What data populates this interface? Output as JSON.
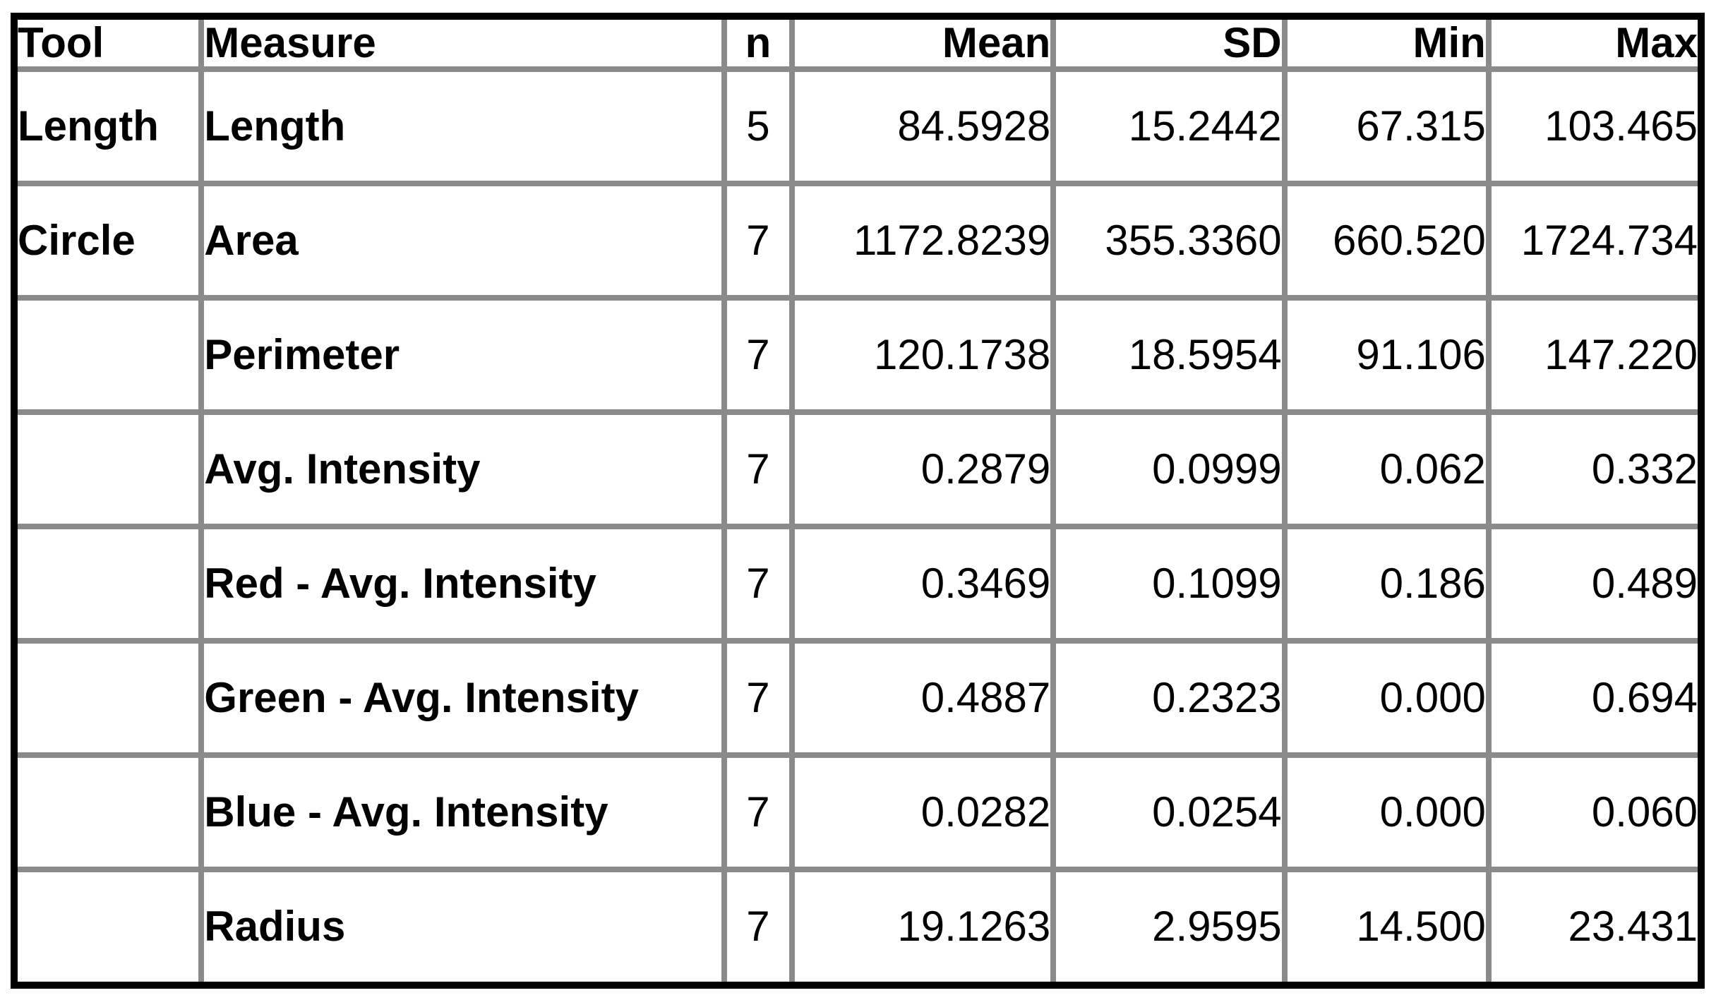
{
  "table": {
    "columns": [
      "Tool",
      "Measure",
      "n",
      "Mean",
      "SD",
      "Min",
      "Max"
    ],
    "rows": [
      {
        "tool": "Length",
        "measure": "Length",
        "n": "5",
        "mean": "84.5928",
        "sd": "15.2442",
        "min": "67.315",
        "max": "103.465"
      },
      {
        "tool": "Circle",
        "measure": "Area",
        "n": "7",
        "mean": "1172.8239",
        "sd": "355.3360",
        "min": "660.520",
        "max": "1724.734"
      },
      {
        "tool": "",
        "measure": "Perimeter",
        "n": "7",
        "mean": "120.1738",
        "sd": "18.5954",
        "min": "91.106",
        "max": "147.220"
      },
      {
        "tool": "",
        "measure": "Avg. Intensity",
        "n": "7",
        "mean": "0.2879",
        "sd": "0.0999",
        "min": "0.062",
        "max": "0.332"
      },
      {
        "tool": "",
        "measure": "Red - Avg. Intensity",
        "n": "7",
        "mean": "0.3469",
        "sd": "0.1099",
        "min": "0.186",
        "max": "0.489"
      },
      {
        "tool": "",
        "measure": "Green - Avg. Intensity",
        "n": "7",
        "mean": "0.4887",
        "sd": "0.2323",
        "min": "0.000",
        "max": "0.694"
      },
      {
        "tool": "",
        "measure": "Blue - Avg. Intensity",
        "n": "7",
        "mean": "0.0282",
        "sd": "0.0254",
        "min": "0.000",
        "max": "0.060"
      },
      {
        "tool": "",
        "measure": "Radius",
        "n": "7",
        "mean": "19.1263",
        "sd": "2.9595",
        "min": "14.500",
        "max": "23.431"
      }
    ],
    "colors": {
      "outer_border": "#000000",
      "gridline": "#8a8a8a",
      "text": "#000000",
      "background": "#ffffff"
    }
  }
}
